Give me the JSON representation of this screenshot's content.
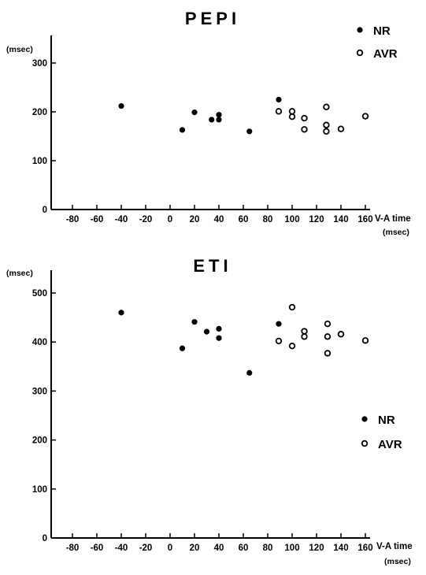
{
  "chart_data": [
    {
      "type": "scatter",
      "title": "PEPI",
      "ylabel": "(msec)",
      "xlabel": "V-A time",
      "xunit": "(msec)",
      "xlim": [
        -100,
        170
      ],
      "ylim": [
        0,
        350
      ],
      "xticks": [
        -80,
        -60,
        -40,
        -20,
        0,
        20,
        40,
        60,
        80,
        100,
        120,
        140,
        160
      ],
      "yticks": [
        0,
        100,
        200,
        300
      ],
      "legend_position": "top-right",
      "series": [
        {
          "name": "NR",
          "marker": "filled-circle",
          "points": [
            [
              -40,
              212
            ],
            [
              10,
              163
            ],
            [
              20,
              199
            ],
            [
              34,
              184
            ],
            [
              40,
              184
            ],
            [
              40,
              194
            ],
            [
              65,
              160
            ],
            [
              89,
              225
            ]
          ]
        },
        {
          "name": "AVR",
          "marker": "open-circle",
          "points": [
            [
              89,
              201
            ],
            [
              100,
              190
            ],
            [
              100,
              201
            ],
            [
              110,
              164
            ],
            [
              110,
              187
            ],
            [
              128,
              210
            ],
            [
              128,
              160
            ],
            [
              128,
              173
            ],
            [
              140,
              165
            ],
            [
              160,
              191
            ]
          ]
        }
      ]
    },
    {
      "type": "scatter",
      "title": "ETI",
      "ylabel": "(msec)",
      "xlabel": "V-A time",
      "xunit": "(msec)",
      "xlim": [
        -100,
        170
      ],
      "ylim": [
        0,
        550
      ],
      "xticks": [
        -80,
        -60,
        -40,
        -20,
        0,
        20,
        40,
        60,
        80,
        100,
        120,
        140,
        160
      ],
      "yticks": [
        0,
        100,
        200,
        300,
        400,
        500
      ],
      "legend_position": "right",
      "series": [
        {
          "name": "NR",
          "marker": "filled-circle",
          "points": [
            [
              -40,
              460
            ],
            [
              10,
              387
            ],
            [
              20,
              441
            ],
            [
              30,
              421
            ],
            [
              40,
              427
            ],
            [
              40,
              408
            ],
            [
              65,
              337
            ],
            [
              89,
              437
            ]
          ]
        },
        {
          "name": "AVR",
          "marker": "open-circle",
          "points": [
            [
              89,
              402
            ],
            [
              100,
              471
            ],
            [
              100,
              392
            ],
            [
              110,
              411
            ],
            [
              110,
              422
            ],
            [
              129,
              437
            ],
            [
              129,
              411
            ],
            [
              129,
              377
            ],
            [
              140,
              416
            ],
            [
              160,
              403
            ]
          ]
        }
      ]
    }
  ]
}
